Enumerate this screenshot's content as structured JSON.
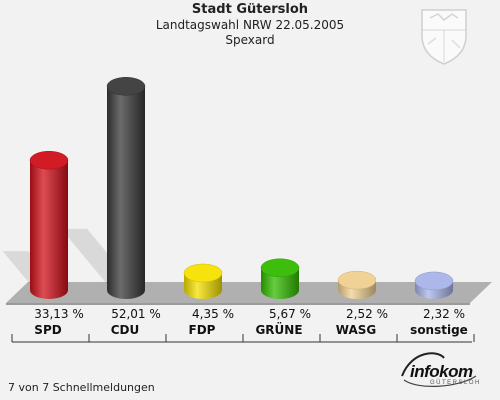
{
  "header": {
    "title": "Stadt Gütersloh",
    "subtitle": "Landtagswahl NRW 22.05.2005",
    "region": "Spexard"
  },
  "footer": {
    "status": "7 von 7 Schnellmeldungen"
  },
  "logo": {
    "name": "infokom",
    "sub": "GÜTERSLOH"
  },
  "chart_data": {
    "type": "bar",
    "title": "Stadt Gütersloh",
    "subtitle": "Landtagswahl NRW 22.05.2005",
    "categories": [
      "SPD",
      "CDU",
      "FDP",
      "GRÜNE",
      "WASG",
      "sonstige"
    ],
    "values": [
      33.13,
      52.01,
      4.35,
      5.67,
      2.52,
      2.32
    ],
    "value_labels": [
      "33,13 %",
      "52,01 %",
      "4,35 %",
      "5,67 %",
      "2,52 %",
      "2,32 %"
    ],
    "colors": [
      "#d0101a",
      "#3a3a3a",
      "#f5e000",
      "#33bb00",
      "#f0d090",
      "#a8b4e8"
    ],
    "ylim": [
      0,
      60
    ],
    "grid": false
  }
}
